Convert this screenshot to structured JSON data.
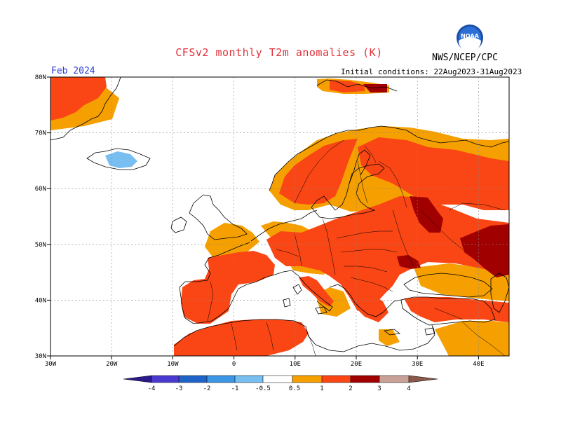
{
  "header": {
    "title": "CFSv2 monthly T2m anomalies (K)",
    "month": "Feb 2024",
    "initial_conditions": "Initial conditions: 22Aug2023-31Aug2023",
    "organization": "NWS/NCEP/CPC",
    "logo_text": "NOAA"
  },
  "map": {
    "lon_range": [
      -30,
      45
    ],
    "lat_range": [
      30,
      80
    ],
    "lon_ticks": [
      "30W",
      "20W",
      "10W",
      "0",
      "10E",
      "20E",
      "30E",
      "40E"
    ],
    "lat_ticks": [
      "30N",
      "40N",
      "50N",
      "60N",
      "70N",
      "80N"
    ]
  },
  "colorbar": {
    "labels": [
      "-4",
      "-3",
      "-2",
      "-1",
      "-0.5",
      "0.5",
      "1",
      "2",
      "3",
      "4"
    ],
    "colors": {
      "below_-4": "#2a1a8c",
      "-4_-3": "#4a3ad0",
      "-3_-2": "#1e64c8",
      "-2_-1": "#3c96e6",
      "-1_-0.5": "#78bef0",
      "-0.5_0.5": "#ffffff",
      "0.5_1": "#f5a000",
      "1_2": "#fa4614",
      "2_3": "#a00000",
      "3_4": "#c8a096",
      "above_4": "#8c5a4b"
    }
  }
}
